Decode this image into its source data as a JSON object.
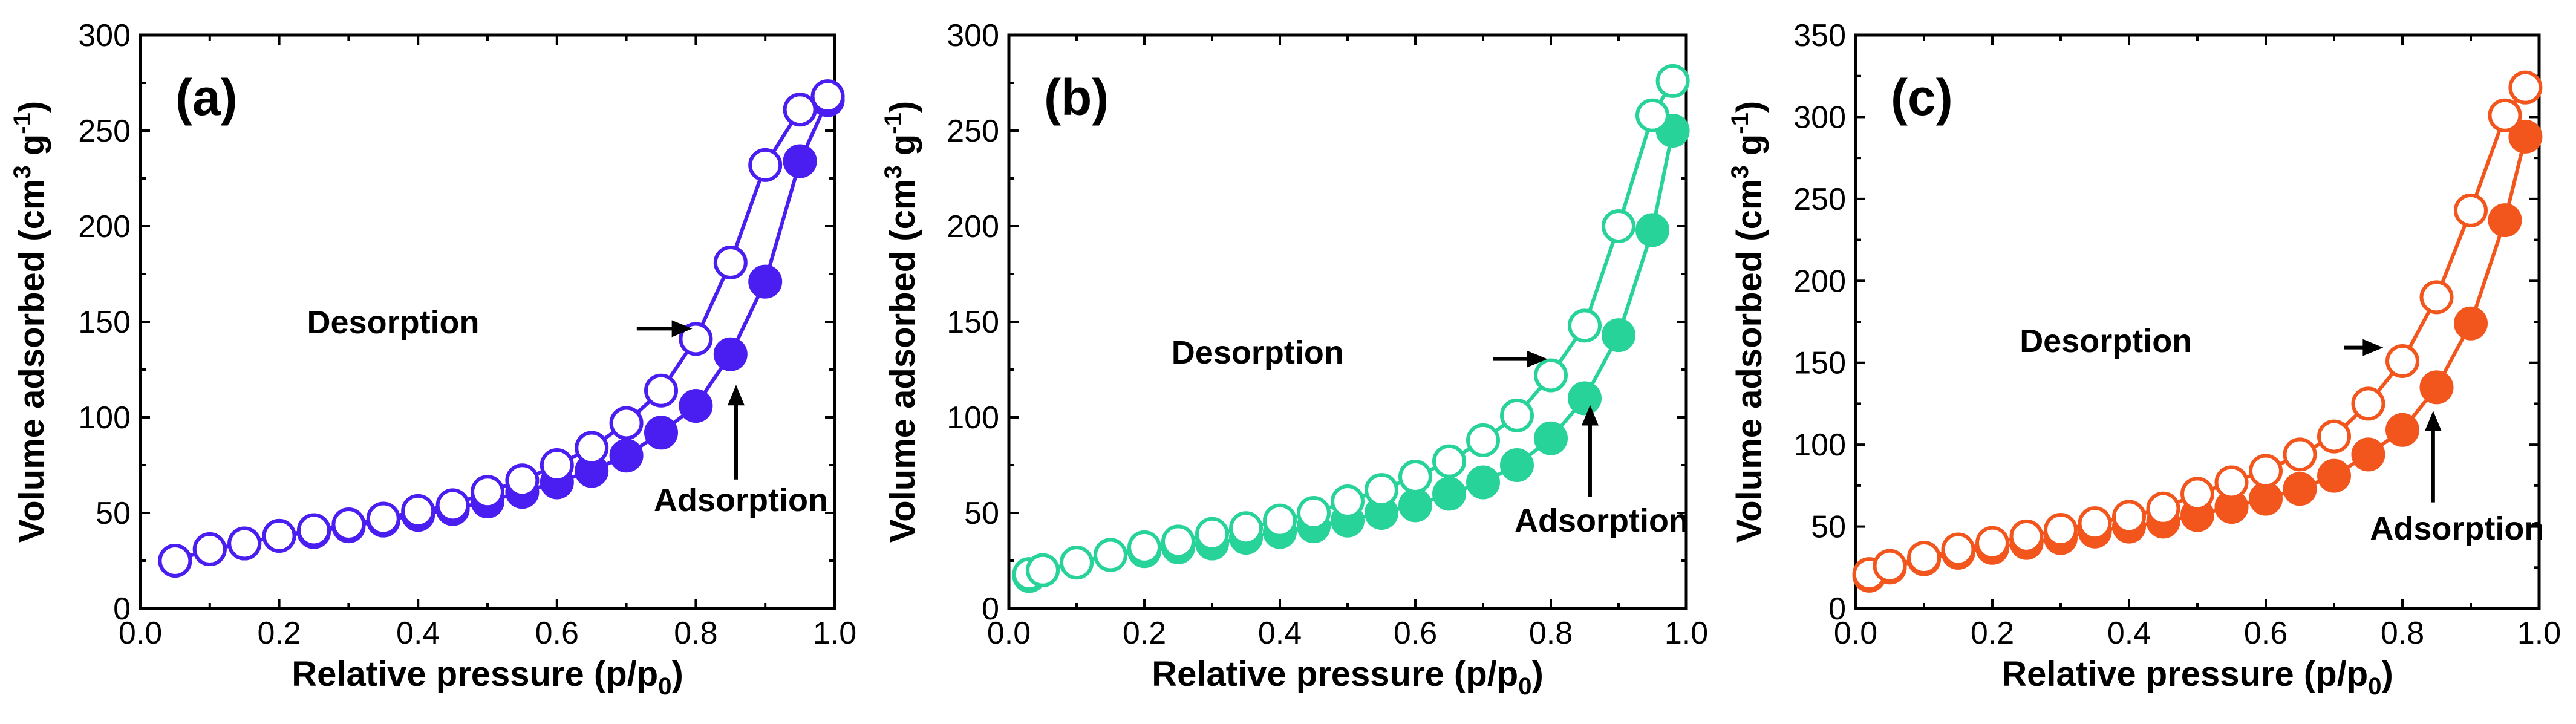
{
  "chart_data": [
    {
      "type": "scatter",
      "panel_label": "(a)",
      "color": "#4a1df0",
      "xlabel": "Relative pressure (p/p0)",
      "xlabel_parts": {
        "main": "Relative pressure (p/p",
        "sub": "0",
        "close": ")"
      },
      "ylabel": "Volume adsorbed (cm3 g-1)",
      "ylabel_parts": {
        "main": "Volume adsorbed (cm",
        "sup1": "3",
        "mid": " g",
        "sup2": "-1",
        "close": ")"
      },
      "xlim": [
        0.0,
        1.0
      ],
      "ylim": [
        0,
        300
      ],
      "xticks": [
        "0.0",
        "0.2",
        "0.4",
        "0.6",
        "0.8",
        "1.0"
      ],
      "yticks": [
        "0",
        "50",
        "100",
        "150",
        "200",
        "250",
        "300"
      ],
      "series": [
        {
          "name": "Adsorption",
          "marker": "filled",
          "x": [
            0.05,
            0.1,
            0.15,
            0.2,
            0.25,
            0.3,
            0.35,
            0.4,
            0.45,
            0.5,
            0.55,
            0.6,
            0.65,
            0.7,
            0.75,
            0.8,
            0.85,
            0.9,
            0.95,
            0.99
          ],
          "y": [
            25,
            31,
            34,
            38,
            40,
            43,
            46,
            49,
            52,
            56,
            61,
            66,
            72,
            80,
            92,
            106,
            133,
            171,
            234,
            266
          ]
        },
        {
          "name": "Desorption",
          "marker": "open",
          "x": [
            0.05,
            0.1,
            0.15,
            0.2,
            0.25,
            0.3,
            0.35,
            0.4,
            0.45,
            0.5,
            0.55,
            0.6,
            0.65,
            0.7,
            0.75,
            0.8,
            0.85,
            0.9,
            0.95,
            0.99
          ],
          "y": [
            25,
            31,
            34,
            38,
            41,
            44,
            47,
            51,
            54,
            61,
            67,
            75,
            84,
            97,
            114,
            141,
            181,
            232,
            261,
            268
          ]
        }
      ],
      "annotations": [
        {
          "text": "Desorption",
          "type": "desorption",
          "points_to": [
            0.8,
            141
          ]
        },
        {
          "text": "Adsorption",
          "type": "adsorption",
          "points_to": [
            0.85,
            133
          ]
        }
      ]
    },
    {
      "type": "scatter",
      "panel_label": "(b)",
      "color": "#27d398",
      "xlabel": "Relative pressure (p/p0)",
      "xlabel_parts": {
        "main": "Relative pressure (p/p",
        "sub": "0",
        "close": ")"
      },
      "ylabel": "Volume adsorbed (cm3 g-1)",
      "ylabel_parts": {
        "main": "Volume adsorbed (cm",
        "sup1": "3",
        "mid": " g",
        "sup2": "-1",
        "close": ")"
      },
      "xlim": [
        0.0,
        1.0
      ],
      "ylim": [
        0,
        300
      ],
      "xticks": [
        "0.0",
        "0.2",
        "0.4",
        "0.6",
        "0.8",
        "1.0"
      ],
      "yticks": [
        "0",
        "50",
        "100",
        "150",
        "200",
        "250",
        "300"
      ],
      "series": [
        {
          "name": "Adsorption",
          "marker": "filled",
          "x": [
            0.03,
            0.05,
            0.1,
            0.15,
            0.2,
            0.25,
            0.3,
            0.35,
            0.4,
            0.45,
            0.5,
            0.55,
            0.6,
            0.65,
            0.7,
            0.75,
            0.8,
            0.85,
            0.9,
            0.95,
            0.98
          ],
          "y": [
            17,
            20,
            24,
            28,
            30,
            32,
            34,
            37,
            40,
            43,
            46,
            50,
            54,
            60,
            66,
            75,
            89,
            110,
            143,
            198,
            250
          ]
        },
        {
          "name": "Desorption",
          "marker": "open",
          "x": [
            0.03,
            0.05,
            0.1,
            0.15,
            0.2,
            0.25,
            0.3,
            0.35,
            0.4,
            0.45,
            0.5,
            0.55,
            0.6,
            0.65,
            0.7,
            0.75,
            0.8,
            0.85,
            0.9,
            0.95,
            0.98
          ],
          "y": [
            18,
            20,
            24,
            28,
            32,
            35,
            39,
            42,
            46,
            50,
            56,
            62,
            69,
            77,
            88,
            101,
            122,
            148,
            200,
            258,
            276
          ]
        }
      ],
      "annotations": [
        {
          "text": "Desorption",
          "type": "desorption",
          "points_to": [
            0.8,
            122
          ]
        },
        {
          "text": "Adsorption",
          "type": "adsorption",
          "points_to": [
            0.85,
            110
          ]
        }
      ]
    },
    {
      "type": "scatter",
      "panel_label": "(c)",
      "color": "#f2561d",
      "xlabel": "Relative pressure (p/p0)",
      "xlabel_parts": {
        "main": "Relative pressure (p/p",
        "sub": "0",
        "close": ")"
      },
      "ylabel": "Volume adsorbed (cm3 g-1)",
      "ylabel_parts": {
        "main": "Volume adsorbed (cm",
        "sup1": "3",
        "mid": " g",
        "sup2": "-1",
        "close": ")"
      },
      "xlim": [
        0.0,
        1.0
      ],
      "ylim": [
        0,
        350
      ],
      "xticks": [
        "0.0",
        "0.2",
        "0.4",
        "0.6",
        "0.8",
        "1.0"
      ],
      "yticks": [
        "0",
        "50",
        "100",
        "150",
        "200",
        "250",
        "300",
        "350"
      ],
      "series": [
        {
          "name": "Adsorption",
          "marker": "filled",
          "x": [
            0.02,
            0.05,
            0.1,
            0.15,
            0.2,
            0.25,
            0.3,
            0.35,
            0.4,
            0.45,
            0.5,
            0.55,
            0.6,
            0.65,
            0.7,
            0.75,
            0.8,
            0.85,
            0.9,
            0.95,
            0.98
          ],
          "y": [
            20,
            25,
            30,
            34,
            37,
            40,
            43,
            47,
            50,
            53,
            57,
            62,
            67,
            73,
            81,
            94,
            109,
            135,
            174,
            237,
            288
          ]
        },
        {
          "name": "Desorption",
          "marker": "open",
          "x": [
            0.02,
            0.05,
            0.1,
            0.15,
            0.2,
            0.25,
            0.3,
            0.35,
            0.4,
            0.45,
            0.5,
            0.55,
            0.6,
            0.65,
            0.7,
            0.75,
            0.8,
            0.85,
            0.9,
            0.95,
            0.98
          ],
          "y": [
            21,
            26,
            31,
            36,
            40,
            44,
            48,
            52,
            56,
            61,
            70,
            77,
            84,
            94,
            105,
            125,
            151,
            190,
            243,
            301,
            318
          ]
        }
      ],
      "annotations": [
        {
          "text": "Desorption",
          "type": "desorption",
          "points_to": [
            0.78,
            150
          ]
        },
        {
          "text": "Adsorption",
          "type": "adsorption",
          "points_to": [
            0.84,
            135
          ]
        }
      ]
    }
  ]
}
